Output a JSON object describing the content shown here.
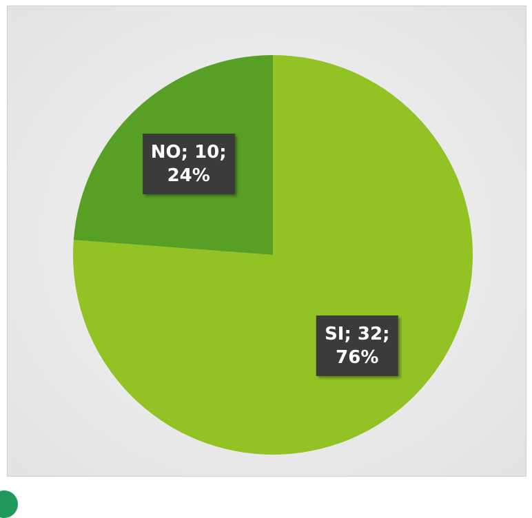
{
  "chart_data": {
    "type": "pie",
    "categories": [
      "SI",
      "NO"
    ],
    "values": [
      32,
      10
    ],
    "value_labels": [
      "SI; 32;\n76%",
      "NO; 10;\n24%"
    ],
    "colors": [
      "#93c225",
      "#57a025"
    ]
  }
}
